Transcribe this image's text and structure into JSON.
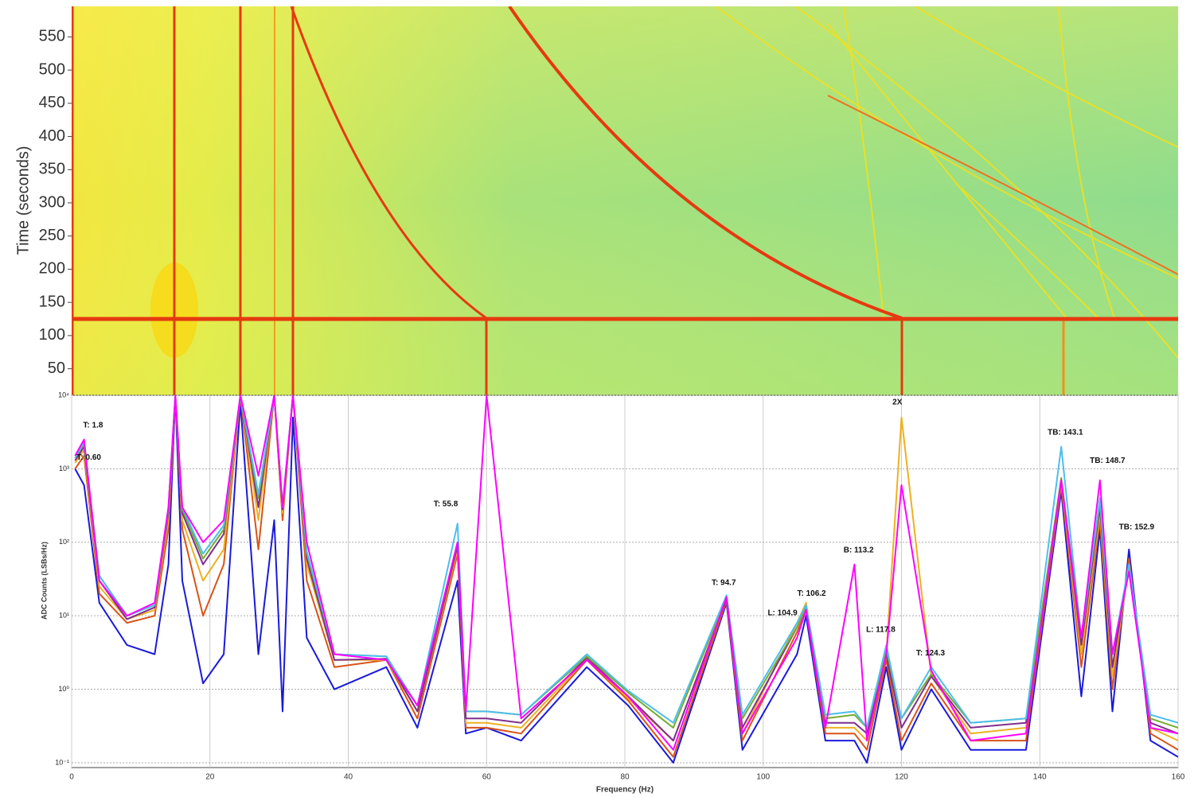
{
  "chart_data": [
    {
      "type": "spectrogram",
      "ylabel": "Time (seconds)",
      "xlim": [
        0,
        160
      ],
      "ylim": [
        10,
        596
      ],
      "yticks": [
        50,
        100,
        150,
        200,
        250,
        300,
        350,
        400,
        450,
        500,
        550
      ]
    },
    {
      "type": "line",
      "log_y": true,
      "grid": true,
      "xlabel": "Frequency (Hz)",
      "ylabel": "ADC Counts (LSBs/Hz)",
      "xlim": [
        0,
        160
      ],
      "ylim": [
        0.086,
        10000
      ],
      "xticks": [
        0,
        20,
        40,
        60,
        80,
        100,
        120,
        140,
        160
      ],
      "yticks": [
        {
          "value": 0.1,
          "label": "10⁻¹"
        },
        {
          "value": 1,
          "label": "10⁰"
        },
        {
          "value": 10,
          "label": "10¹"
        },
        {
          "value": 100,
          "label": "10²"
        },
        {
          "value": 1000,
          "label": "10³"
        },
        {
          "value": 10000,
          "label": "10⁴"
        }
      ],
      "x": [
        0.5,
        1.8,
        4,
        8,
        12,
        14,
        15,
        16,
        19,
        22,
        24.4,
        27,
        29.3,
        30.5,
        32,
        34,
        38,
        45.5,
        50,
        55.8,
        57,
        60,
        65,
        74.5,
        80.5,
        87,
        94.7,
        97,
        104.9,
        106.2,
        109,
        113.2,
        115,
        117.8,
        120,
        124.3,
        130,
        138,
        143.1,
        146,
        148.7,
        150.5,
        152.9,
        156,
        160
      ],
      "series": [
        {
          "color": "#1a1adb",
          "values": [
            1000,
            600,
            15,
            4,
            3,
            50,
            10000,
            30,
            1.2,
            3,
            8000,
            3,
            200,
            0.5,
            5000,
            5,
            1,
            2,
            0.3,
            30,
            0.25,
            0.3,
            0.2,
            2,
            0.6,
            0.1,
            15,
            0.15,
            3,
            10,
            0.2,
            0.2,
            0.1,
            2,
            0.15,
            1,
            0.15,
            0.15,
            500,
            0.8,
            150,
            0.5,
            80,
            0.2,
            0.12
          ]
        },
        {
          "color": "#d95319",
          "values": [
            1000,
            1500,
            20,
            8,
            10,
            150,
            10000,
            150,
            10,
            50,
            10000,
            80,
            10000,
            200,
            10000,
            30,
            2,
            2.5,
            0.4,
            70,
            0.3,
            0.3,
            0.25,
            2.5,
            0.7,
            0.12,
            16,
            0.2,
            6,
            12,
            0.25,
            0.25,
            0.15,
            2.5,
            0.2,
            1.2,
            0.2,
            0.2,
            600,
            2,
            200,
            1,
            60,
            0.25,
            0.15
          ]
        },
        {
          "color": "#edb120",
          "values": [
            1200,
            1800,
            25,
            9,
            12,
            200,
            10000,
            200,
            30,
            80,
            10000,
            200,
            10000,
            250,
            10000,
            50,
            2.5,
            2.5,
            0.5,
            80,
            0.35,
            0.35,
            0.3,
            2.6,
            0.75,
            0.2,
            17,
            0.25,
            8,
            15,
            0.3,
            0.3,
            0.2,
            3,
            5000,
            1.5,
            0.25,
            0.3,
            650,
            3,
            250,
            1.5,
            50,
            0.3,
            0.2
          ]
        },
        {
          "color": "#7e2f8e",
          "values": [
            1300,
            2000,
            30,
            9,
            13,
            250,
            10000,
            250,
            50,
            130,
            10000,
            300,
            10000,
            280,
            10000,
            60,
            2.5,
            2.6,
            0.5,
            90,
            0.4,
            0.4,
            0.35,
            2.7,
            0.8,
            0.2,
            17,
            0.3,
            7,
            13,
            0.35,
            0.35,
            0.25,
            3,
            0.3,
            1.5,
            0.3,
            0.35,
            700,
            4,
            300,
            2,
            50,
            0.35,
            0.25
          ]
        },
        {
          "color": "#77ac30",
          "values": [
            1400,
            2200,
            35,
            10,
            14,
            280,
            10000,
            280,
            60,
            150,
            10000,
            400,
            10000,
            300,
            10000,
            70,
            3,
            2.8,
            0.6,
            100,
            0.5,
            0.5,
            0.45,
            2.8,
            0.9,
            0.3,
            18,
            0.4,
            7,
            13,
            0.4,
            0.45,
            0.3,
            3.5,
            0.4,
            1.6,
            0.35,
            0.4,
            750,
            5,
            350,
            3,
            45,
            0.4,
            0.3
          ]
        },
        {
          "color": "#4dbeee",
          "values": [
            1400,
            2300,
            35,
            10,
            14,
            300,
            10000,
            300,
            70,
            170,
            10000,
            450,
            10000,
            320,
            10000,
            75,
            3,
            2.8,
            0.6,
            180,
            0.5,
            0.5,
            0.45,
            3,
            0.95,
            0.35,
            19,
            0.45,
            8,
            14,
            0.45,
            0.5,
            0.3,
            4,
            0.4,
            2,
            0.35,
            0.4,
            2000,
            5,
            400,
            3,
            50,
            0.45,
            0.35
          ]
        },
        {
          "color": "#ff00ff",
          "values": [
            1500,
            2500,
            30,
            10,
            15,
            300,
            10000,
            300,
            100,
            200,
            10000,
            800,
            10000,
            300,
            10000,
            100,
            3,
            2.5,
            0.6,
            100,
            0.5,
            10000,
            0.4,
            2.5,
            0.8,
            0.15,
            18,
            0.25,
            5,
            12,
            0.3,
            50,
            0.2,
            3,
            600,
            1.8,
            0.2,
            0.25,
            700,
            5,
            700,
            3,
            40,
            0.3,
            0.25
          ]
        }
      ],
      "annotations": [
        {
          "text": "T: 1.8",
          "x": 3.1,
          "y": 3900
        },
        {
          "text": "T: 0.60",
          "x": 2.5,
          "y": 1420
        },
        {
          "text": "T: 55.8",
          "x": 54.1,
          "y": 330
        },
        {
          "text": "2X",
          "x": 119.4,
          "y": 8000
        },
        {
          "text": "TB: 143.1",
          "x": 143.7,
          "y": 3100
        },
        {
          "text": "TB: 148.7",
          "x": 149.8,
          "y": 1280
        },
        {
          "text": "TB: 152.9",
          "x": 154,
          "y": 160
        },
        {
          "text": "B: 113.2",
          "x": 113.8,
          "y": 78
        },
        {
          "text": "T: 94.7",
          "x": 94.3,
          "y": 28
        },
        {
          "text": "T: 106.2",
          "x": 107,
          "y": 20
        },
        {
          "text": "L: 104.9",
          "x": 102.8,
          "y": 10.8
        },
        {
          "text": "L: 117.8",
          "x": 117,
          "y": 6.4
        },
        {
          "text": "T: 124.3",
          "x": 124.2,
          "y": 3.1
        }
      ]
    }
  ]
}
